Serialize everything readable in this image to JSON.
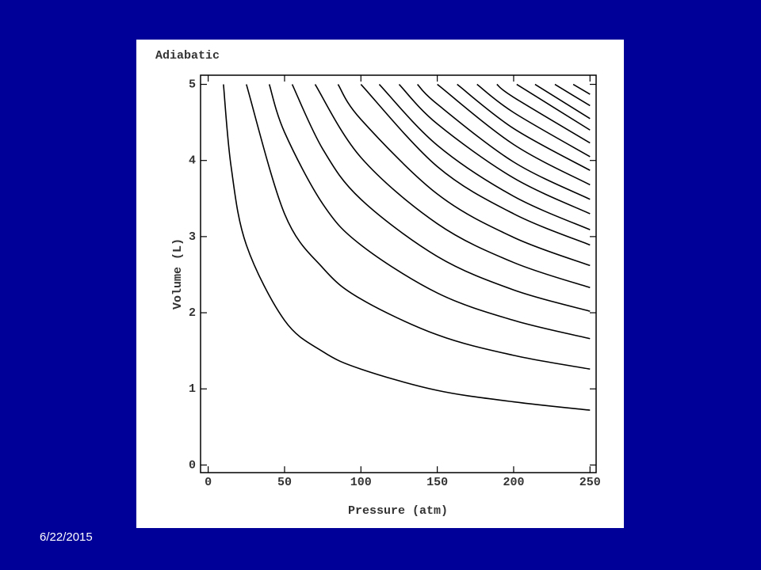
{
  "date": "6/22/2015",
  "chart_data": {
    "type": "line",
    "title": "Adiabatic",
    "xlabel": "Pressure (atm)",
    "ylabel": "Volume (L)",
    "xlim": [
      -5,
      254
    ],
    "ylim": [
      -0.1,
      5.12
    ],
    "xticks": [
      0,
      50,
      100,
      150,
      200,
      250
    ],
    "yticks": [
      0,
      1,
      2,
      3,
      4,
      5
    ],
    "series": [
      {
        "color": "#000000",
        "x": [
          10,
          15,
          25,
          50,
          75,
          100,
          150,
          200,
          250
        ],
        "values": [
          5,
          3.92,
          2.89,
          1.9,
          1.49,
          1.26,
          0.98,
          0.83,
          0.72
        ]
      },
      {
        "color": "#000000",
        "x": [
          25,
          50,
          75,
          100,
          150,
          200,
          250
        ],
        "values": [
          5,
          3.3,
          2.59,
          2.18,
          1.71,
          1.44,
          1.26
        ]
      },
      {
        "color": "#000000",
        "x": [
          40,
          50,
          75,
          100,
          150,
          200,
          250
        ],
        "values": [
          5,
          4.37,
          3.43,
          2.89,
          2.26,
          1.9,
          1.66
        ]
      },
      {
        "color": "#000000",
        "x": [
          55,
          75,
          100,
          150,
          200,
          250
        ],
        "values": [
          5,
          4.15,
          3.49,
          2.74,
          2.3,
          2.02
        ]
      },
      {
        "color": "#000000",
        "x": [
          70,
          100,
          150,
          200,
          250
        ],
        "values": [
          5,
          4.04,
          3.17,
          2.66,
          2.33
        ]
      },
      {
        "color": "#000000",
        "x": [
          85,
          100,
          150,
          200,
          250
        ],
        "values": [
          5,
          4.54,
          3.56,
          2.99,
          2.62
        ]
      },
      {
        "color": "#000000",
        "x": [
          100,
          150,
          200,
          250
        ],
        "values": [
          5,
          3.92,
          3.3,
          2.89
        ]
      },
      {
        "color": "#000000",
        "x": [
          112,
          150,
          200,
          250
        ],
        "values": [
          5,
          4.2,
          3.53,
          3.09
        ]
      },
      {
        "color": "#000000",
        "x": [
          125,
          150,
          200,
          250
        ],
        "values": [
          5,
          4.48,
          3.77,
          3.3
        ]
      },
      {
        "color": "#000000",
        "x": [
          137,
          150,
          200,
          250
        ],
        "values": [
          5,
          4.74,
          3.98,
          3.49
        ]
      },
      {
        "color": "#000000",
        "x": [
          150,
          200,
          250
        ],
        "values": [
          5,
          4.21,
          3.68
        ]
      },
      {
        "color": "#000000",
        "x": [
          163,
          200,
          250
        ],
        "values": [
          5,
          4.42,
          3.87
        ]
      },
      {
        "color": "#000000",
        "x": [
          176,
          200,
          250
        ],
        "values": [
          5,
          4.63,
          4.05
        ]
      },
      {
        "color": "#000000",
        "x": [
          189,
          200,
          250
        ],
        "values": [
          5,
          4.83,
          4.23
        ]
      },
      {
        "color": "#000000",
        "x": [
          202,
          250
        ],
        "values": [
          5,
          4.4
        ]
      },
      {
        "color": "#000000",
        "x": [
          214,
          250
        ],
        "values": [
          5,
          4.55
        ]
      },
      {
        "color": "#000000",
        "x": [
          227,
          250
        ],
        "values": [
          5,
          4.72
        ]
      },
      {
        "color": "#000000",
        "x": [
          239,
          250
        ],
        "values": [
          5,
          4.87
        ]
      }
    ]
  }
}
